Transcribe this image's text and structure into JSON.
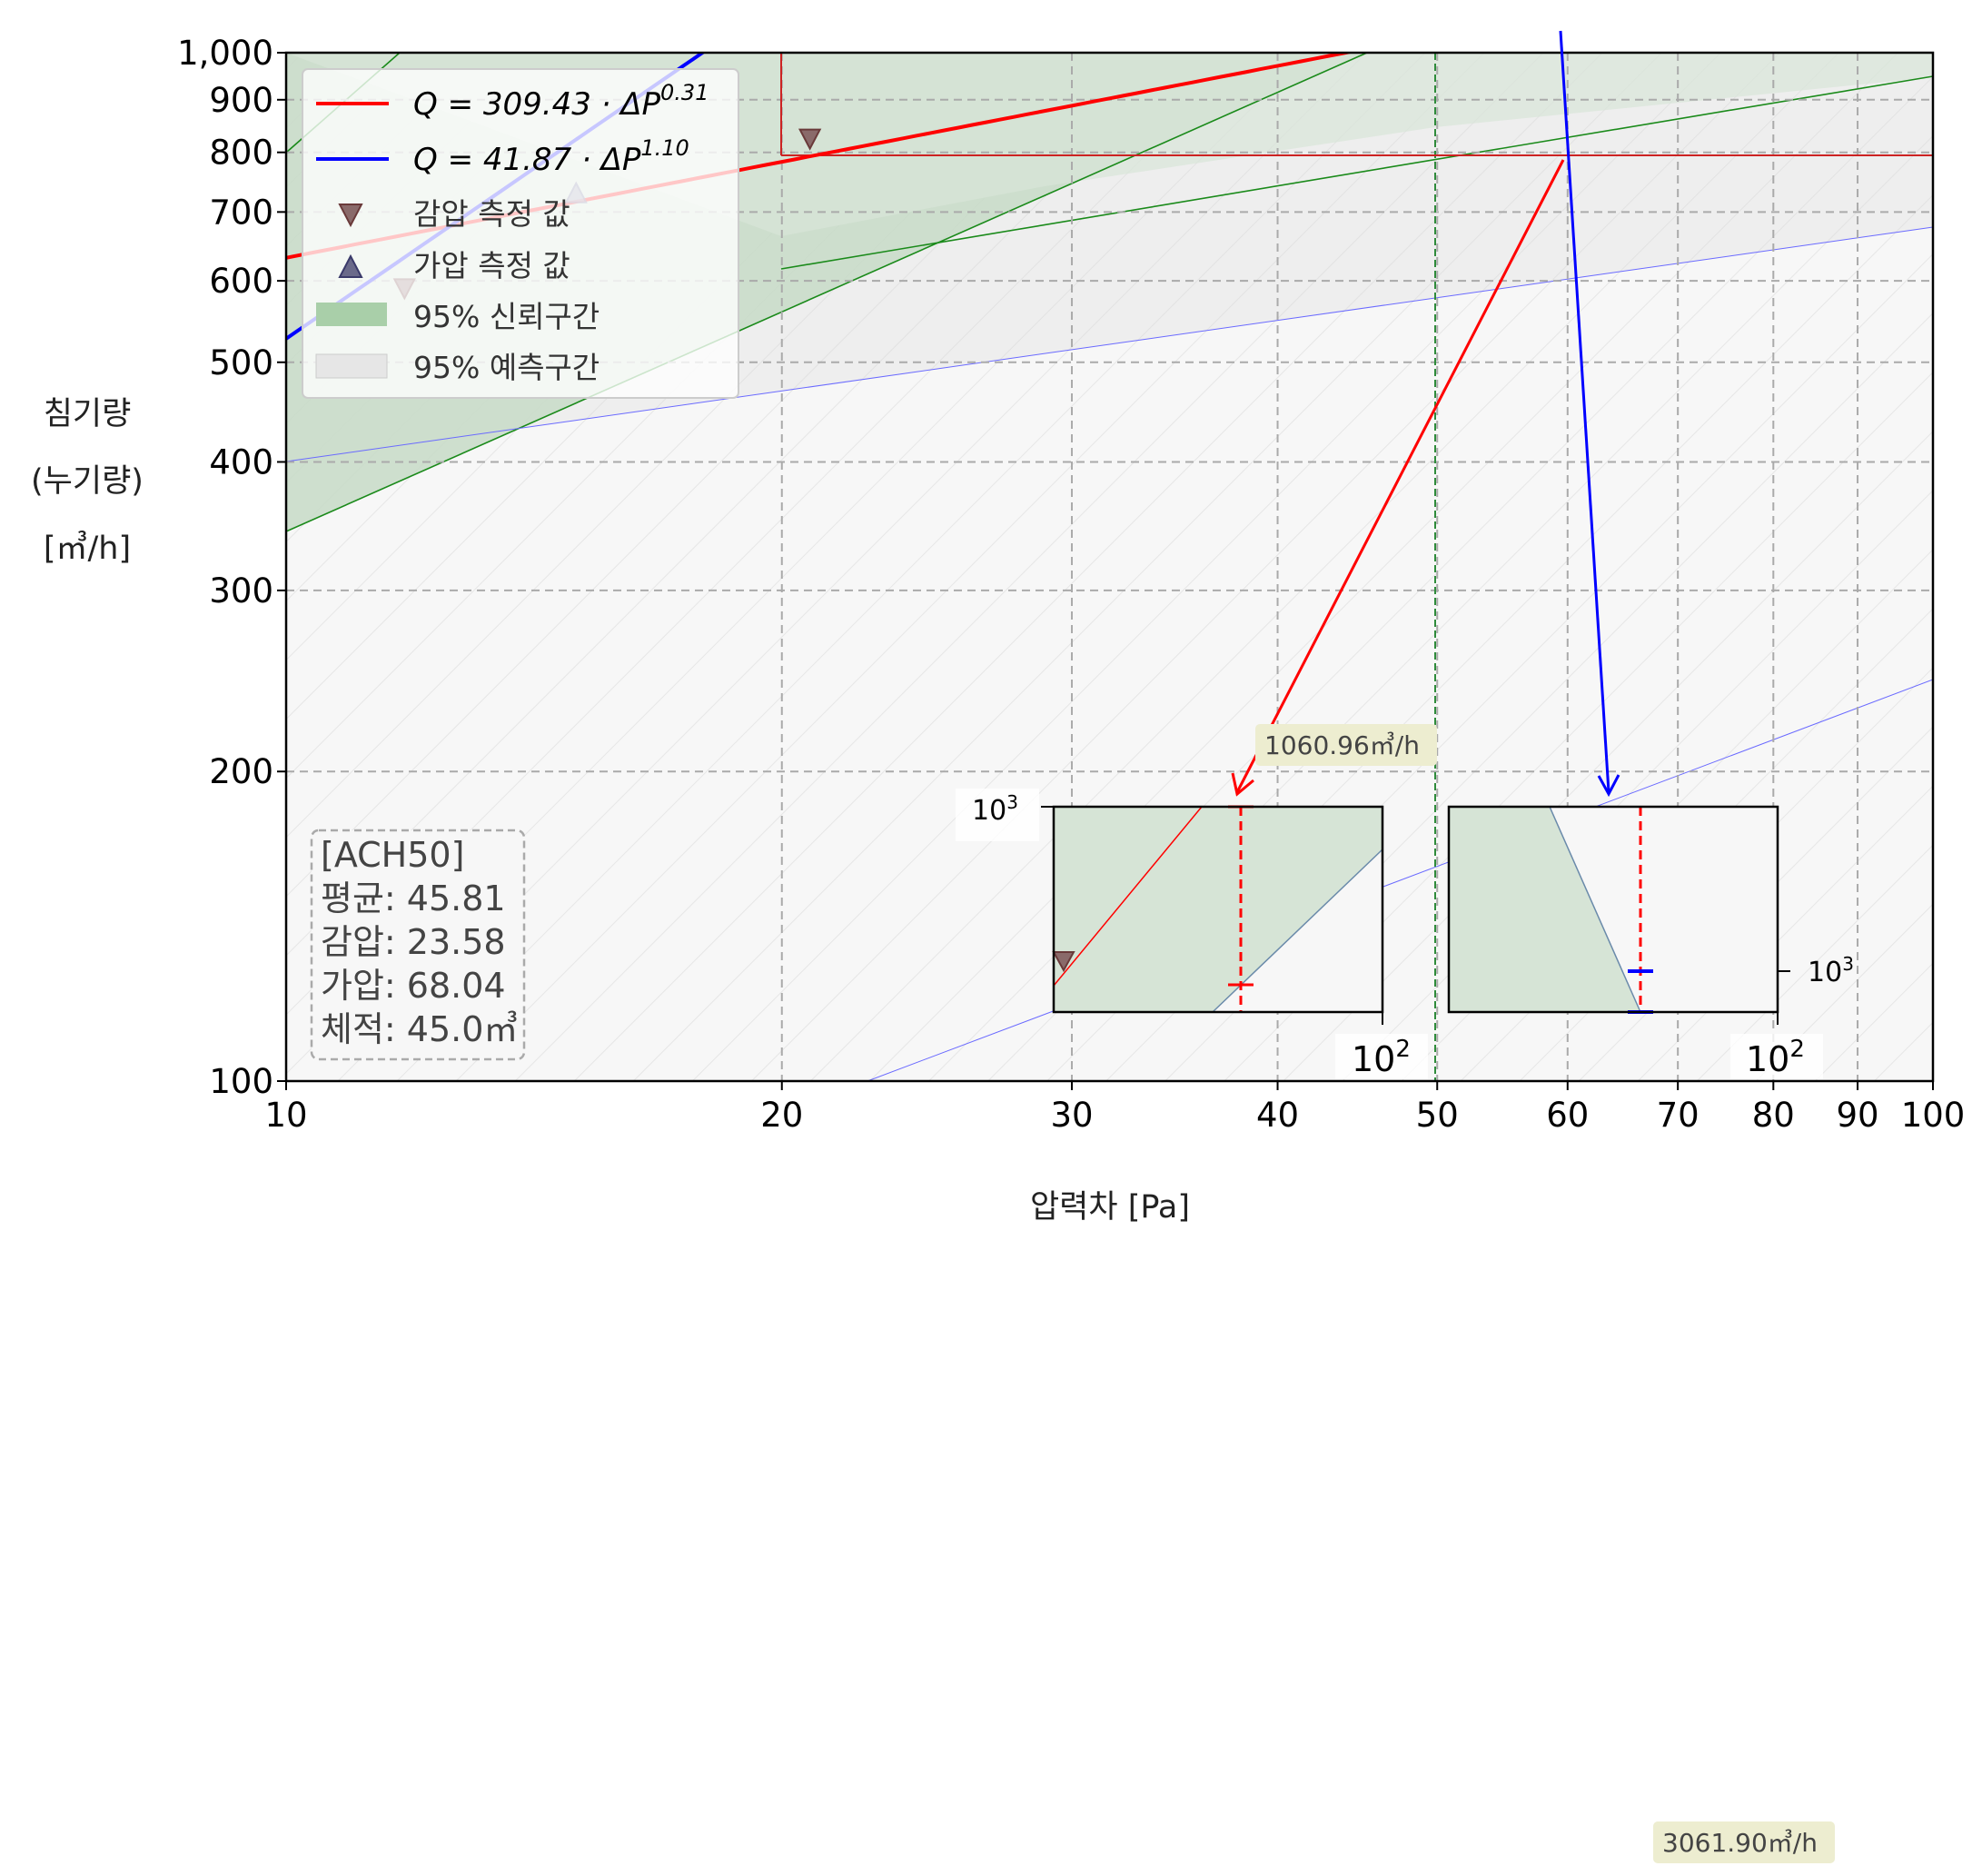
{
  "chart_data": {
    "type": "line",
    "x_scale": "log",
    "y_scale": "log",
    "xlim": [
      10,
      100
    ],
    "ylim": [
      100,
      1000
    ],
    "xlabel": "압력차 [Pa]",
    "ylabel_lines": [
      "침기량",
      "(누기량)",
      "[㎥/h]"
    ],
    "x_ticks": [
      10,
      20,
      30,
      40,
      50,
      60,
      70,
      80,
      90,
      100
    ],
    "x_tick_labels": [
      "10",
      "20",
      "30",
      "40",
      "50",
      "60",
      "70",
      "80",
      "90",
      "100"
    ],
    "y_ticks": [
      100,
      200,
      300,
      400,
      500,
      600,
      700,
      800,
      900,
      1000
    ],
    "y_tick_labels": [
      "100",
      "200",
      "300",
      "400",
      "500",
      "600",
      "700",
      "800",
      "900",
      "1,000"
    ],
    "grid": true,
    "legend_position": "top-left",
    "series": [
      {
        "name": "Q = 309.43 · ΔP^0.31",
        "kind": "fit",
        "coef": 309.43,
        "exponent": 0.31,
        "color": "#ff0000"
      },
      {
        "name": "Q = 41.87 · ΔP^1.10",
        "kind": "fit",
        "coef": 41.87,
        "exponent": 1.1,
        "color": "#0000ff"
      }
    ],
    "legend": {
      "fit_red": {
        "prefix": "Q = 309.43 · ΔP",
        "exp": "0.31"
      },
      "fit_blue": {
        "prefix": "Q = 41.87 · ΔP",
        "exp": "1.10"
      },
      "depress": "감압 측정 값",
      "press": "가압 측정 값",
      "ci": "95% 신뢰구간",
      "pi": "95% 예측구간"
    },
    "measurements": {
      "depressurization": [
        {
          "x": 20.8,
          "y": 825
        },
        {
          "x": 11.8,
          "y": 590
        }
      ],
      "pressurization": [
        {
          "x": 15.0,
          "y": 730
        }
      ]
    },
    "reference_lines": {
      "x": [
        20,
        50
      ],
      "y": 800
    },
    "stats_box": {
      "title": "[ACH50]",
      "lines": [
        "평균: 45.81",
        "감압: 23.58",
        "가압: 68.04",
        "체적: 45.0㎥"
      ]
    },
    "annotations": [
      "1060.96㎥/h",
      "3061.90㎥/h"
    ],
    "insets": [
      {
        "name": "depressurization-detail",
        "y_tick_label": "10",
        "y_tick_exp": "3",
        "x_tick_label": "10",
        "x_tick_exp": "2"
      },
      {
        "name": "pressurization-detail",
        "y_tick_label": "10",
        "y_tick_exp": "3",
        "x_tick_label": "10",
        "x_tick_exp": "2"
      }
    ],
    "colors": {
      "depress": "#ff0000",
      "press": "#0000ff",
      "ci": "#2e8b3a",
      "pi": "#c8c8c8"
    }
  }
}
